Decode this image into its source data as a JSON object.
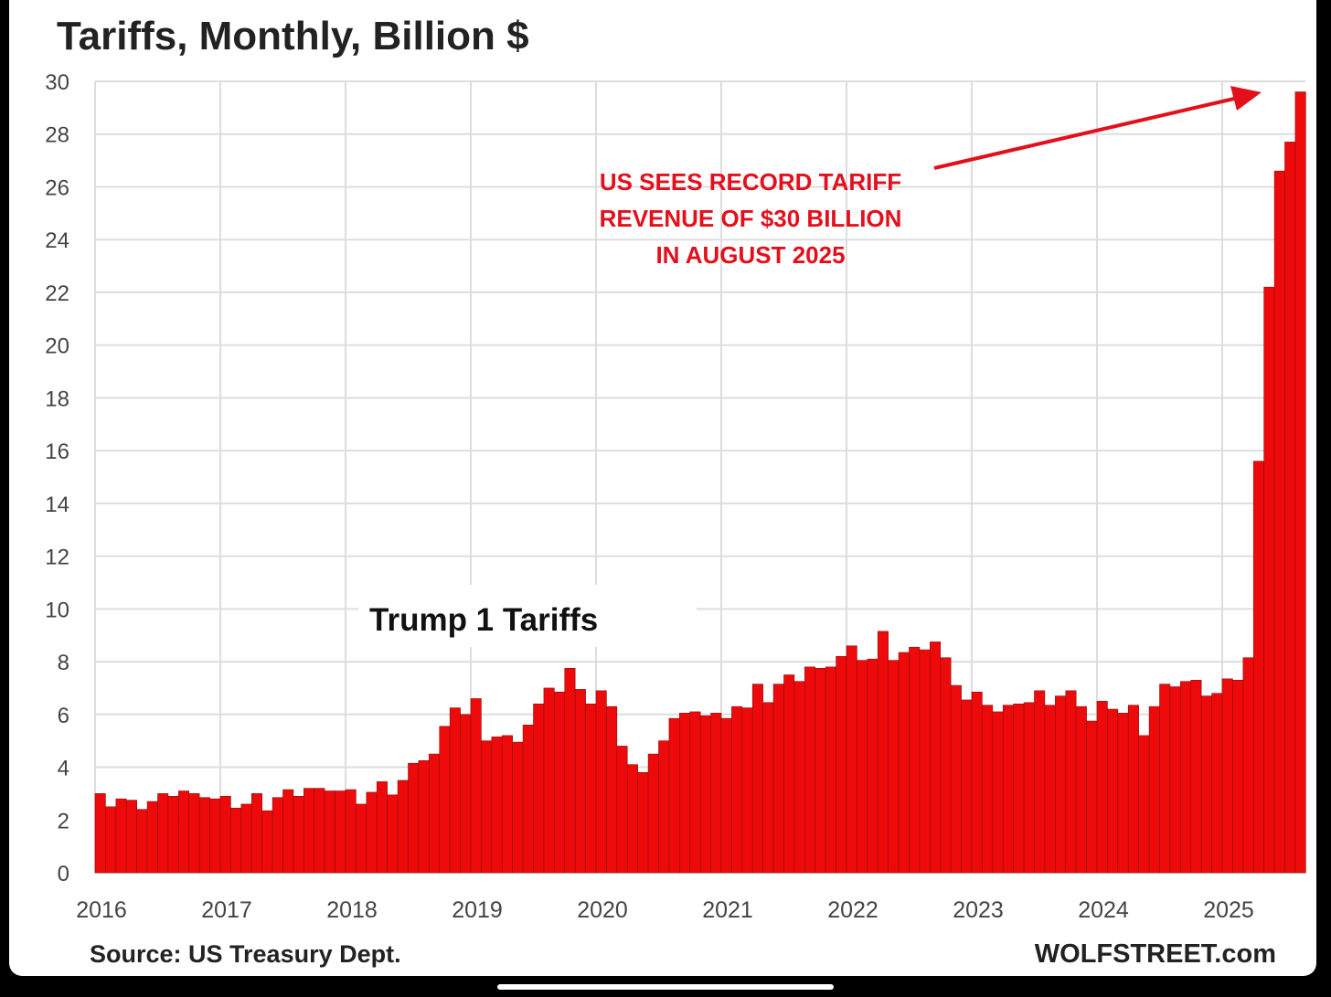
{
  "chart_data": {
    "type": "bar",
    "title": "Tariffs, Monthly, Billion $",
    "xlabel": "",
    "ylabel": "",
    "ylim": [
      0,
      30
    ],
    "yticks": [
      "0",
      "2",
      "4",
      "6",
      "8",
      "10",
      "12",
      "14",
      "16",
      "18",
      "20",
      "22",
      "24",
      "26",
      "28",
      "30"
    ],
    "xticks": [
      "2016",
      "2017",
      "2018",
      "2019",
      "2020",
      "2021",
      "2022",
      "2023",
      "2024",
      "2025"
    ],
    "grid": true,
    "frequency": "monthly, Jan 2016 - Aug 2025",
    "bar_color": "#ee0a0a",
    "values": [
      3.0,
      2.5,
      2.8,
      2.75,
      2.4,
      2.7,
      3.0,
      2.9,
      3.1,
      3.0,
      2.85,
      2.8,
      2.9,
      2.45,
      2.6,
      3.0,
      2.35,
      2.85,
      3.15,
      2.9,
      3.2,
      3.2,
      3.1,
      3.1,
      3.15,
      2.6,
      3.05,
      3.45,
      2.95,
      3.5,
      4.15,
      4.25,
      4.5,
      5.55,
      6.25,
      6.0,
      6.6,
      5.0,
      5.15,
      5.2,
      4.95,
      5.6,
      6.4,
      7.0,
      6.85,
      7.75,
      6.95,
      6.4,
      6.9,
      6.3,
      4.8,
      4.1,
      3.8,
      4.5,
      5.0,
      5.85,
      6.05,
      6.1,
      5.95,
      6.05,
      5.85,
      6.3,
      6.25,
      7.15,
      6.45,
      7.15,
      7.5,
      7.25,
      7.8,
      7.75,
      7.8,
      8.2,
      8.6,
      8.05,
      8.1,
      9.15,
      8.05,
      8.35,
      8.55,
      8.45,
      8.75,
      8.15,
      7.1,
      6.55,
      6.85,
      6.35,
      6.1,
      6.35,
      6.4,
      6.45,
      6.9,
      6.35,
      6.7,
      6.9,
      6.3,
      5.75,
      6.5,
      6.2,
      6.05,
      6.35,
      5.2,
      6.3,
      7.15,
      7.05,
      7.25,
      7.3,
      6.7,
      6.8,
      7.35,
      7.3,
      8.15,
      15.6,
      22.2,
      26.6,
      27.7,
      29.6
    ],
    "annotations": {
      "record_lines": [
        "US SEES RECORD TARIFF",
        "REVENUE OF $30 BILLION",
        "IN AUGUST 2025"
      ],
      "trump": "Trump 1 Tariffs"
    },
    "source": "Source: US Treasury Dept.",
    "brand": "WOLFSTREET.com"
  }
}
